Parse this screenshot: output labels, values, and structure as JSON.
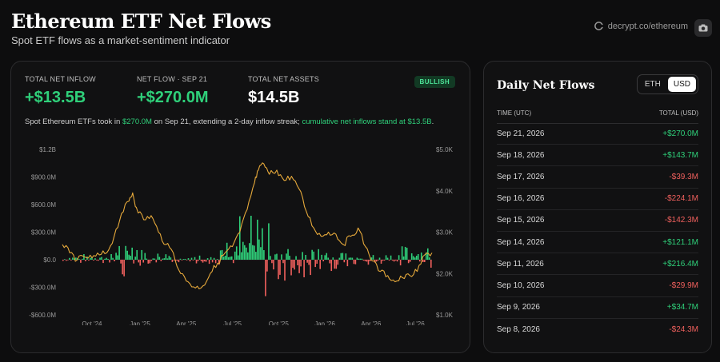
{
  "header": {
    "title": "Ethereum ETF Net Flows",
    "subtitle": "Spot ETF flows as a market-sentiment indicator",
    "source": "decrypt.co/ethereum"
  },
  "stats": [
    {
      "label": "TOTAL NET INFLOW",
      "value": "+$13.5B",
      "tone": "green"
    },
    {
      "label": "NET FLOW · SEP 21",
      "value": "+$270.0M",
      "tone": "green"
    },
    {
      "label": "TOTAL NET ASSETS",
      "value": "$14.5B",
      "tone": "white"
    }
  ],
  "badge": "BULLISH",
  "summary": {
    "pre": "Spot Ethereum ETFs took in ",
    "amount": "$270.0M",
    "mid": " on Sep 21, extending a 2-day inflow streak; ",
    "tail": "cumulative net inflows stand at $13.5B",
    "end": "."
  },
  "colors": {
    "positive": "#2fd07a",
    "negative": "#f0605d",
    "price": "#e6a93b",
    "accent_bg": "#123a24"
  },
  "chart_data": {
    "type": "bar",
    "left_axis": {
      "ticks": [
        "$1.2B",
        "$900.0M",
        "$600.0M",
        "$300.0M",
        "$0.0",
        "-$300.0M",
        "-$600.0M"
      ],
      "range": [
        -600,
        1200
      ]
    },
    "right_axis": {
      "ticks": [
        "$5.0K",
        "$4.0K",
        "$3.0K",
        "$2.0K",
        "$1.0K"
      ],
      "range": [
        1000,
        5000
      ]
    },
    "x_ticks": [
      {
        "label": "Oct '24",
        "t": 0.08
      },
      {
        "label": "Jan '25",
        "t": 0.21
      },
      {
        "label": "Apr '25",
        "t": 0.335
      },
      {
        "label": "Jul '25",
        "t": 0.46
      },
      {
        "label": "Oct '25",
        "t": 0.585
      },
      {
        "label": "Jan '26",
        "t": 0.71
      },
      {
        "label": "Apr '26",
        "t": 0.835
      },
      {
        "label": "Jul '26",
        "t": 0.955
      }
    ],
    "series": [
      {
        "kind": "bars",
        "unit": "USD M"
      },
      {
        "kind": "line",
        "unit": "ETH price USD",
        "points": [
          [
            0.0,
            2700
          ],
          [
            0.02,
            2500
          ],
          [
            0.04,
            2330
          ],
          [
            0.06,
            2400
          ],
          [
            0.08,
            2380
          ],
          [
            0.1,
            2450
          ],
          [
            0.12,
            2500
          ],
          [
            0.14,
            2900
          ],
          [
            0.16,
            3450
          ],
          [
            0.18,
            3750
          ],
          [
            0.19,
            3950
          ],
          [
            0.2,
            3600
          ],
          [
            0.22,
            3300
          ],
          [
            0.24,
            3400
          ],
          [
            0.26,
            3000
          ],
          [
            0.28,
            2700
          ],
          [
            0.3,
            2500
          ],
          [
            0.32,
            2000
          ],
          [
            0.34,
            1800
          ],
          [
            0.36,
            1650
          ],
          [
            0.38,
            1700
          ],
          [
            0.4,
            2000
          ],
          [
            0.42,
            2250
          ],
          [
            0.44,
            2500
          ],
          [
            0.46,
            2650
          ],
          [
            0.48,
            3000
          ],
          [
            0.5,
            3550
          ],
          [
            0.52,
            4200
          ],
          [
            0.53,
            4500
          ],
          [
            0.545,
            4650
          ],
          [
            0.56,
            4400
          ],
          [
            0.58,
            4500
          ],
          [
            0.6,
            4250
          ],
          [
            0.62,
            4350
          ],
          [
            0.64,
            4050
          ],
          [
            0.66,
            3500
          ],
          [
            0.68,
            3100
          ],
          [
            0.7,
            2900
          ],
          [
            0.72,
            3000
          ],
          [
            0.74,
            2950
          ],
          [
            0.76,
            2700
          ],
          [
            0.78,
            2900
          ],
          [
            0.8,
            3100
          ],
          [
            0.82,
            2650
          ],
          [
            0.84,
            2300
          ],
          [
            0.86,
            2050
          ],
          [
            0.88,
            1950
          ],
          [
            0.9,
            1800
          ],
          [
            0.92,
            1900
          ],
          [
            0.94,
            1950
          ],
          [
            0.96,
            2050
          ],
          [
            0.98,
            2450
          ],
          [
            1.0,
            2500
          ]
        ]
      }
    ]
  },
  "side": {
    "title": "Daily Net Flows",
    "toggle": [
      {
        "label": "ETH",
        "active": false
      },
      {
        "label": "USD",
        "active": true
      }
    ],
    "columns": [
      "TIME (UTC)",
      "TOTAL (USD)"
    ],
    "rows": [
      {
        "date": "Sep 21, 2026",
        "value": "+$270.0M",
        "sign": "pos"
      },
      {
        "date": "Sep 18, 2026",
        "value": "+$143.7M",
        "sign": "pos"
      },
      {
        "date": "Sep 17, 2026",
        "value": "-$39.3M",
        "sign": "neg"
      },
      {
        "date": "Sep 16, 2026",
        "value": "-$224.1M",
        "sign": "neg"
      },
      {
        "date": "Sep 15, 2026",
        "value": "-$142.3M",
        "sign": "neg"
      },
      {
        "date": "Sep 14, 2026",
        "value": "+$121.1M",
        "sign": "pos"
      },
      {
        "date": "Sep 11, 2026",
        "value": "+$216.4M",
        "sign": "pos"
      },
      {
        "date": "Sep 10, 2026",
        "value": "-$29.9M",
        "sign": "neg"
      },
      {
        "date": "Sep 9, 2026",
        "value": "+$34.7M",
        "sign": "pos"
      },
      {
        "date": "Sep 8, 2026",
        "value": "-$24.3M",
        "sign": "neg"
      }
    ]
  }
}
